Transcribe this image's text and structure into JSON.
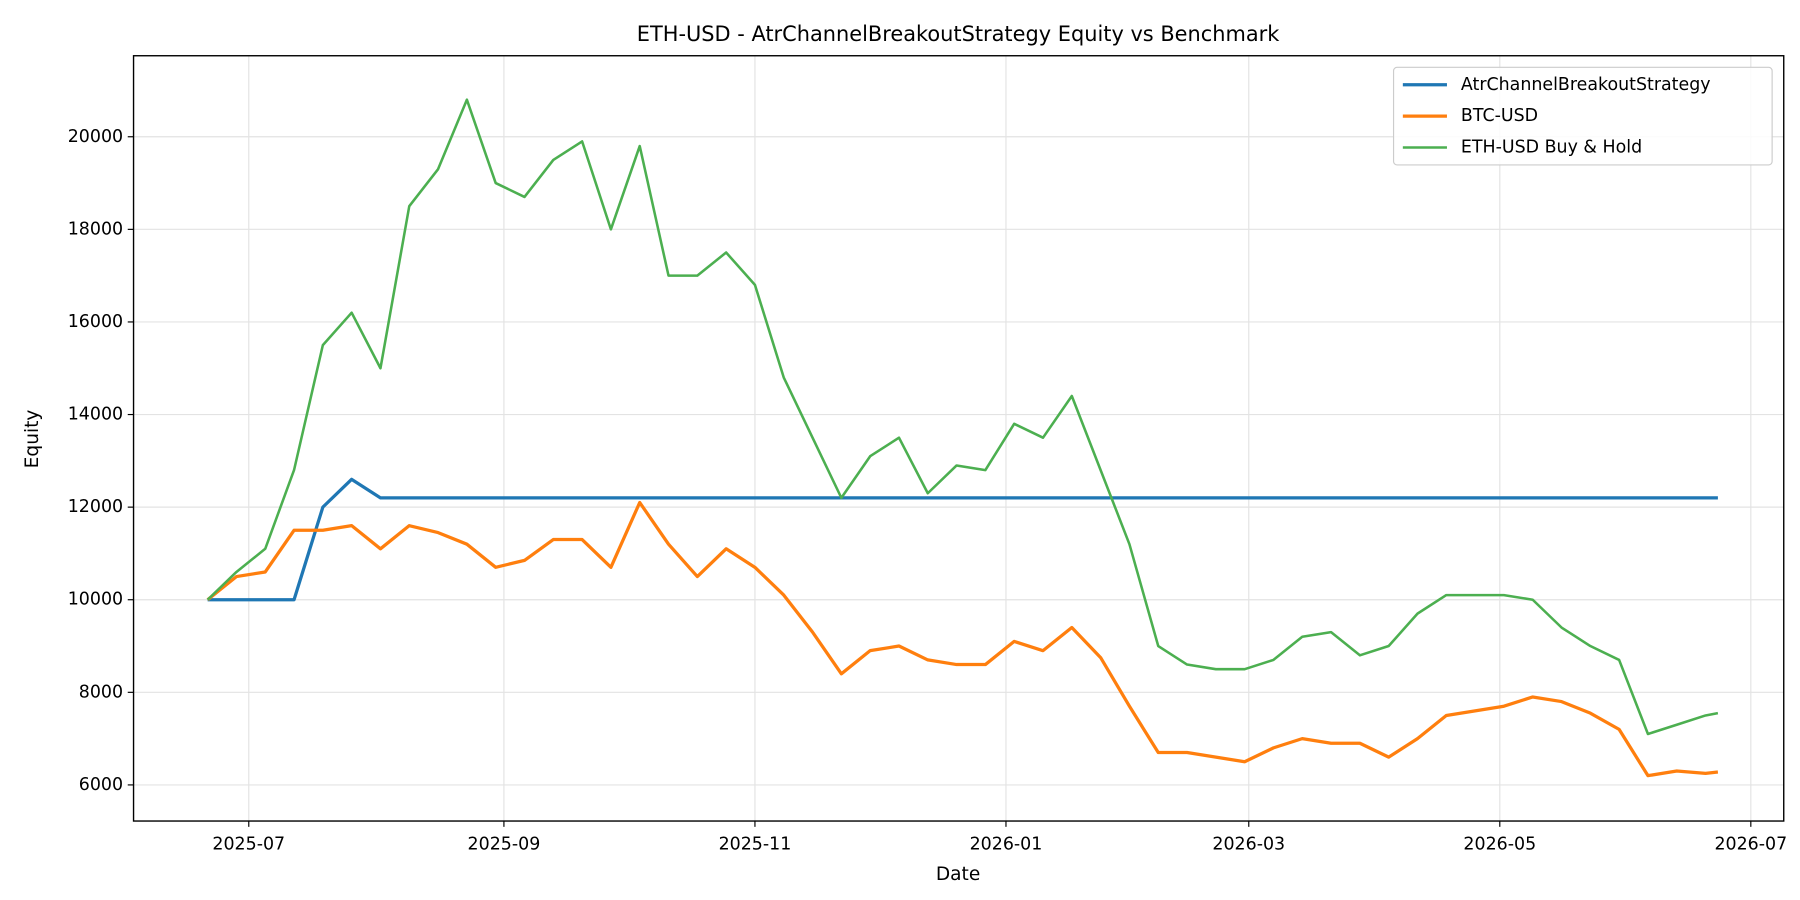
{
  "chart_data": {
    "type": "line",
    "title": "ETH-USD - AtrChannelBreakoutStrategy Equity vs Benchmark",
    "x_label": "Date",
    "y_label": "Equity",
    "grid": true,
    "legend_position": "upper-right",
    "xlim": [
      "2025-06-03",
      "2026-07-09"
    ],
    "xticks": [
      {
        "value": "2025-07-01",
        "label": "2025-07"
      },
      {
        "value": "2025-09-01",
        "label": "2025-09"
      },
      {
        "value": "2025-11-01",
        "label": "2025-11"
      },
      {
        "value": "2026-01-01",
        "label": "2026-01"
      },
      {
        "value": "2026-03-01",
        "label": "2026-03"
      },
      {
        "value": "2026-05-01",
        "label": "2026-05"
      },
      {
        "value": "2026-07-01",
        "label": "2026-07"
      }
    ],
    "ylim": [
      5220,
      21750
    ],
    "yticks": [
      6000,
      8000,
      10000,
      12000,
      14000,
      16000,
      18000,
      20000
    ],
    "x": [
      "2025-06-21",
      "2025-06-28",
      "2025-07-05",
      "2025-07-12",
      "2025-07-19",
      "2025-07-26",
      "2025-08-02",
      "2025-08-09",
      "2025-08-16",
      "2025-08-23",
      "2025-08-30",
      "2025-09-06",
      "2025-09-13",
      "2025-09-20",
      "2025-09-27",
      "2025-10-04",
      "2025-10-11",
      "2025-10-18",
      "2025-10-25",
      "2025-11-01",
      "2025-11-08",
      "2025-11-15",
      "2025-11-22",
      "2025-11-29",
      "2025-12-06",
      "2025-12-13",
      "2025-12-20",
      "2025-12-27",
      "2026-01-03",
      "2026-01-10",
      "2026-01-17",
      "2026-01-24",
      "2026-01-31",
      "2026-02-07",
      "2026-02-14",
      "2026-02-21",
      "2026-02-28",
      "2026-03-07",
      "2026-03-14",
      "2026-03-21",
      "2026-03-28",
      "2026-04-04",
      "2026-04-11",
      "2026-04-18",
      "2026-04-25",
      "2026-05-02",
      "2026-05-09",
      "2026-05-16",
      "2026-05-23",
      "2026-05-30",
      "2026-06-06",
      "2026-06-13",
      "2026-06-20",
      "2026-06-23"
    ],
    "series": [
      {
        "name": "AtrChannelBreakoutStrategy",
        "color": "#1f77b4",
        "line_width": 2.8,
        "values": [
          10000,
          10000,
          10000,
          10000,
          12000,
          12600,
          12200,
          12200,
          12200,
          12200,
          12200,
          12200,
          12200,
          12200,
          12200,
          12200,
          12200,
          12200,
          12200,
          12200,
          12200,
          12200,
          12200,
          12200,
          12200,
          12200,
          12200,
          12200,
          12200,
          12200,
          12200,
          12200,
          12200,
          12200,
          12200,
          12200,
          12200,
          12200,
          12200,
          12200,
          12200,
          12200,
          12200,
          12200,
          12200,
          12200,
          12200,
          12200,
          12200,
          12200,
          12200,
          12200,
          12200,
          12200
        ]
      },
      {
        "name": "BTC-USD",
        "color": "#ff7f0e",
        "line_width": 2.8,
        "values": [
          10000,
          10500,
          10600,
          11500,
          11500,
          11600,
          11100,
          11600,
          11450,
          11200,
          10700,
          10850,
          11300,
          11300,
          10700,
          12100,
          11200,
          10500,
          11100,
          10700,
          10100,
          9300,
          8400,
          8900,
          9000,
          8700,
          8600,
          8600,
          9100,
          8900,
          9400,
          8750,
          7700,
          6700,
          6700,
          6600,
          6500,
          6800,
          7000,
          6900,
          6900,
          6600,
          7000,
          7500,
          7600,
          7700,
          7900,
          7800,
          7550,
          7200,
          6200,
          6300,
          6250,
          6280
        ]
      },
      {
        "name": "ETH-USD Buy & Hold",
        "color": "#4caf50",
        "line_width": 2.2,
        "values": [
          10000,
          10600,
          11100,
          12800,
          15500,
          16200,
          15000,
          18500,
          19300,
          20800,
          19000,
          18700,
          19500,
          19900,
          18000,
          19800,
          17000,
          17000,
          17500,
          16800,
          14800,
          13500,
          12200,
          13100,
          13500,
          12300,
          12900,
          12800,
          13800,
          13500,
          14400,
          12800,
          11200,
          9000,
          8600,
          8500,
          8500,
          8700,
          9200,
          9300,
          8800,
          9000,
          9700,
          10100,
          10100,
          10100,
          10000,
          9400,
          9000,
          8700,
          7100,
          7300,
          7500,
          7550
        ]
      }
    ]
  }
}
